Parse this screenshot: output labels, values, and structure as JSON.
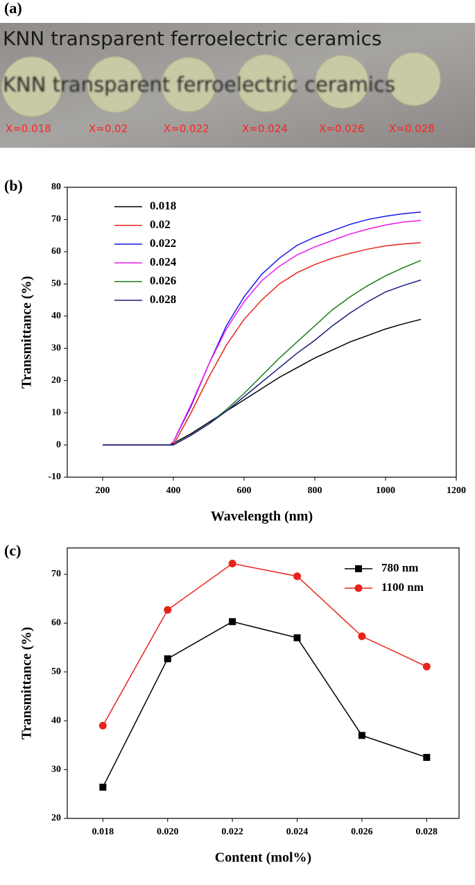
{
  "photo": {
    "panel_label": "(a)",
    "caption": "KNN transparent ferroelectric ceramics",
    "caption_through_disks": "KNN transparent ferroelectric ceramics",
    "sample_labels": [
      "X=0.018",
      "X=0.02",
      "X=0.022",
      "X=0.024",
      "X=0.026",
      "X=0.028"
    ]
  },
  "chart_data": [
    {
      "type": "line",
      "panel_label": "(b)",
      "x_label": "Wavelength (nm)",
      "y_label": "Transmittance (%)",
      "x": [
        200,
        300,
        390,
        400,
        450,
        500,
        550,
        600,
        650,
        700,
        750,
        800,
        850,
        900,
        950,
        1000,
        1050,
        1100
      ],
      "xlim": [
        100,
        1200
      ],
      "xticks": [
        200,
        400,
        600,
        800,
        1000,
        1200
      ],
      "ylim": [
        -10,
        80
      ],
      "yticks": [
        -10,
        0,
        10,
        20,
        30,
        40,
        50,
        60,
        70,
        80
      ],
      "legend": "upper left",
      "series": [
        {
          "name": "0.018",
          "color": "#000000",
          "values": [
            0,
            0,
            0,
            0.5,
            3.5,
            7,
            10.5,
            14,
            17.5,
            21,
            24,
            27,
            29.5,
            32,
            34,
            36,
            37.6,
            39
          ]
        },
        {
          "name": "0.02",
          "color": "#e8231c",
          "values": [
            0,
            0,
            0,
            0,
            10,
            21,
            31,
            39,
            45,
            50,
            53.5,
            56,
            58,
            59.5,
            60.8,
            61.8,
            62.4,
            62.8
          ]
        },
        {
          "name": "0.022",
          "color": "#1515f0",
          "values": [
            0,
            0,
            0,
            1,
            12,
            25,
            37,
            46,
            53,
            58,
            62,
            64.5,
            66.5,
            68.5,
            70,
            71,
            71.8,
            72.3
          ]
        },
        {
          "name": "0.024",
          "color": "#ee1aee",
          "values": [
            0,
            0,
            0,
            1,
            12.5,
            25,
            36,
            44.5,
            51,
            55.5,
            59,
            61.5,
            63.5,
            65.5,
            67,
            68.3,
            69.2,
            69.7
          ]
        },
        {
          "name": "0.026",
          "color": "#1a7a1a",
          "values": [
            0,
            0,
            0,
            0,
            3,
            6.5,
            11,
            16,
            21.5,
            27,
            32,
            37,
            42,
            46,
            49.5,
            52.5,
            55,
            57.3
          ]
        },
        {
          "name": "0.028",
          "color": "#1a1a80",
          "values": [
            0,
            0,
            0,
            0,
            3,
            6.5,
            10.5,
            15,
            19.5,
            24,
            28.5,
            32.5,
            37,
            41,
            44.5,
            47.5,
            49.5,
            51.2
          ]
        }
      ]
    },
    {
      "type": "line",
      "panel_label": "(c)",
      "x_label": "Content (mol%)",
      "y_label": "Transmittance (%)",
      "x": [
        0.018,
        0.02,
        0.022,
        0.024,
        0.026,
        0.028
      ],
      "xlim": [
        0.0169,
        0.029
      ],
      "xticks": [
        {
          "value": 0.018,
          "label": "0.018"
        },
        {
          "value": 0.02,
          "label": "0.020"
        },
        {
          "value": 0.022,
          "label": "0.022"
        },
        {
          "value": 0.024,
          "label": "0.024"
        },
        {
          "value": 0.026,
          "label": "0.026"
        },
        {
          "value": 0.028,
          "label": "0.028"
        }
      ],
      "ylim": [
        20,
        75.4
      ],
      "yticks": [
        20,
        30,
        40,
        50,
        60,
        70
      ],
      "legend": "upper right",
      "series": [
        {
          "name": "780 nm",
          "color": "#000000",
          "marker": "square",
          "values": [
            26.4,
            52.7,
            60.3,
            57,
            37,
            32.5
          ]
        },
        {
          "name": "1100 nm",
          "color": "#e8231c",
          "marker": "circle",
          "values": [
            39,
            62.7,
            72.2,
            69.6,
            57.3,
            51.1
          ]
        }
      ]
    }
  ]
}
